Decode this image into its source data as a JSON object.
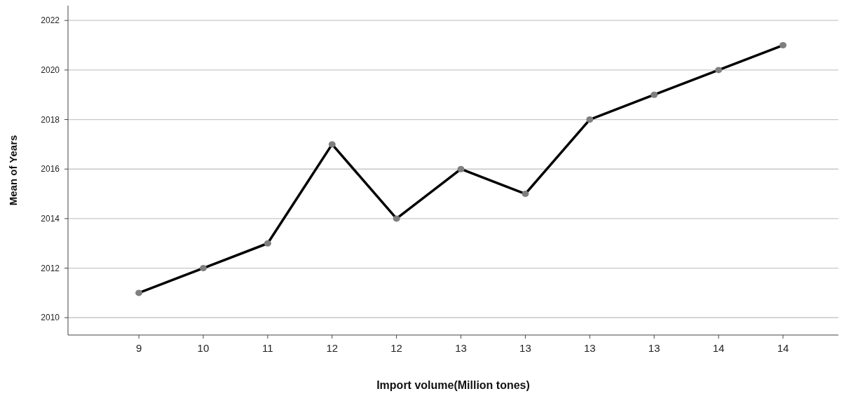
{
  "chart_data": {
    "type": "line",
    "xlabel": "Import volume(Million tones)",
    "ylabel": "Mean of Years",
    "categories": [
      "9",
      "10",
      "11",
      "12",
      "12",
      "13",
      "13",
      "13",
      "13",
      "14",
      "14"
    ],
    "series": [
      {
        "color": "#000000",
        "values": [
          2011,
          2012,
          2013,
          2017,
          2014,
          2016,
          2015,
          2018,
          2019,
          2020,
          2021
        ]
      }
    ],
    "ylim": [
      2009.3,
      2022.6
    ],
    "yticks": [
      2010,
      2012,
      2014,
      2016,
      2018,
      2020,
      2022
    ],
    "grid": "y",
    "marker": "circle",
    "line_style": "solid"
  }
}
